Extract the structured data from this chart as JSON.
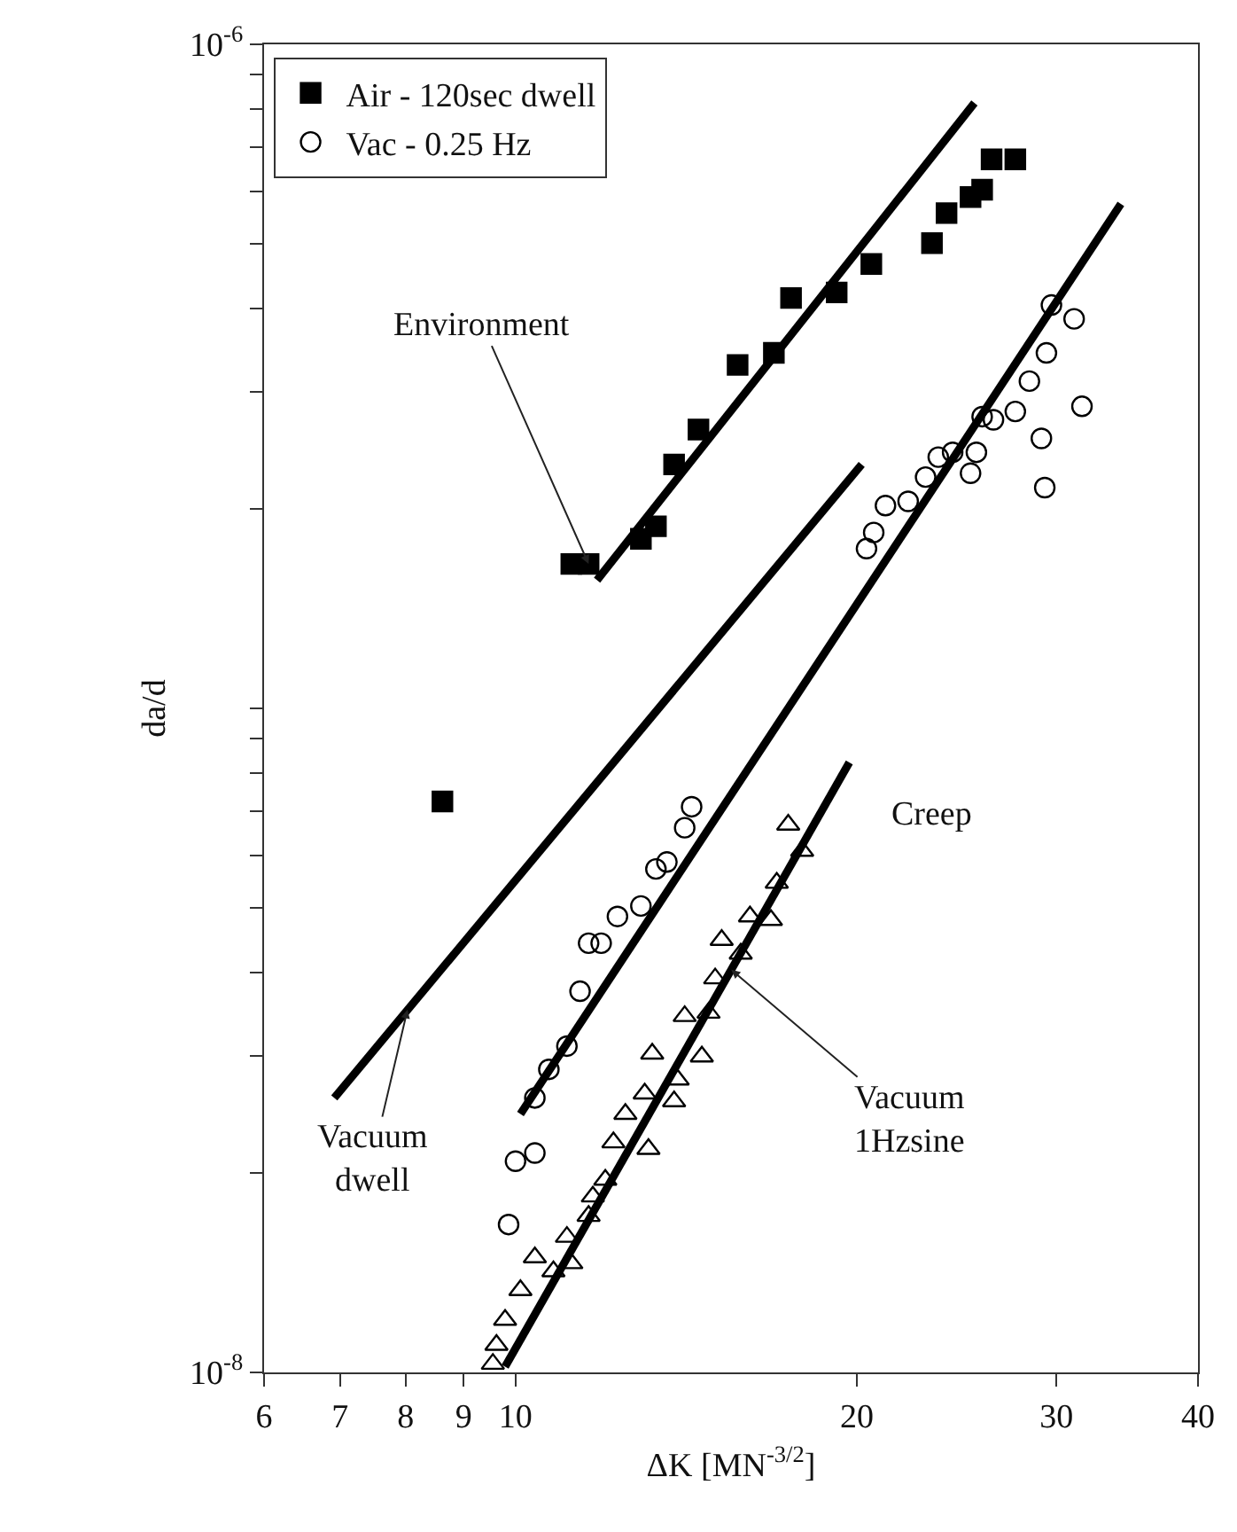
{
  "chart_data": {
    "type": "scatter",
    "xlabel": "ΔK [MN$^{-3/2}$]",
    "ylabel": "da/d",
    "log": "xy",
    "legend": "top left",
    "xlim": [
      6,
      40
    ],
    "xticks": [
      6,
      7,
      8,
      9,
      10,
      20,
      30,
      40
    ],
    "ylim": [
      1e-08,
      1e-06
    ],
    "yticks": [
      {
        "value": 1e-08,
        "label": "10$^{-8}$"
      },
      {
        "value": 2e-08,
        "label": null
      },
      {
        "value": 3e-08,
        "label": null
      },
      {
        "value": 4e-08,
        "label": null
      },
      {
        "value": 5e-08,
        "label": null
      },
      {
        "value": 6e-08,
        "label": null
      },
      {
        "value": 7e-08,
        "label": null
      },
      {
        "value": 8e-08,
        "label": null
      },
      {
        "value": 9e-08,
        "label": null
      },
      {
        "value": 1e-07,
        "label": null
      },
      {
        "value": 2e-07,
        "label": null
      },
      {
        "value": 3e-07,
        "label": null
      },
      {
        "value": 4e-07,
        "label": null
      },
      {
        "value": 5e-07,
        "label": null
      },
      {
        "value": 6e-07,
        "label": null
      },
      {
        "value": 7e-07,
        "label": null
      },
      {
        "value": 8e-07,
        "label": null
      },
      {
        "value": 9e-07,
        "label": null
      },
      {
        "value": 1e-06,
        "label": "10$^{-6}$"
      }
    ],
    "series": [
      {
        "name": "Air - 120sec dwell",
        "color": "#000000",
        "marker": "square",
        "x": [
          27.6,
          26.3,
          25.8,
          25.2,
          24.0,
          23.3,
          20.6,
          19.2,
          17.5,
          16.9,
          15.7,
          14.5,
          13.8,
          13.3,
          12.9,
          11.6,
          11.2,
          8.62
        ],
        "values": [
          6.71e-07,
          6.71e-07,
          6.04e-07,
          5.89e-07,
          5.57e-07,
          5.02e-07,
          4.67e-07,
          4.23e-07,
          4.15e-07,
          3.43e-07,
          3.29e-07,
          2.63e-07,
          2.33e-07,
          1.88e-07,
          1.8e-07,
          1.65e-07,
          1.65e-07,
          7.24e-08
        ]
      },
      {
        "name": "Vac - 0.25 Hz",
        "color": "#000000",
        "marker": "circle",
        "x": [
          29.7,
          31.1,
          29.4,
          31.6,
          29.1,
          29.3,
          28.4,
          27.6,
          26.4,
          25.8,
          25.5,
          25.2,
          24.3,
          23.6,
          23.0,
          22.2,
          21.2,
          20.7,
          20.4,
          14.3,
          14.1,
          13.6,
          13.3,
          12.9,
          12.3,
          11.9,
          11.6,
          11.4,
          11.1,
          10.7,
          10.4,
          10.4,
          10.0,
          9.86
        ],
        "values": [
          4.05e-07,
          3.86e-07,
          3.43e-07,
          2.85e-07,
          2.55e-07,
          2.15e-07,
          3.11e-07,
          2.8e-07,
          2.72e-07,
          2.75e-07,
          2.43e-07,
          2.26e-07,
          2.43e-07,
          2.39e-07,
          2.23e-07,
          2.05e-07,
          2.02e-07,
          1.84e-07,
          1.74e-07,
          7.11e-08,
          6.61e-08,
          5.87e-08,
          5.73e-08,
          5.04e-08,
          4.86e-08,
          4.43e-08,
          4.43e-08,
          3.75e-08,
          3.1e-08,
          2.86e-08,
          2.59e-08,
          2.14e-08,
          2.08e-08,
          1.67e-08
        ]
      },
      {
        "color": "#000000",
        "marker": "triangle",
        "x": [
          17.4,
          17.9,
          17.0,
          16.8,
          16.1,
          15.8,
          15.2,
          15.0,
          14.8,
          14.1,
          14.6,
          13.9,
          13.8,
          13.2,
          13.0,
          13.1,
          12.5,
          12.2,
          12.0,
          11.7,
          11.6,
          11.1,
          11.2,
          10.8,
          10.4,
          10.1,
          9.79,
          9.62,
          9.55
        ],
        "values": [
          6.68e-08,
          6.1e-08,
          5.46e-08,
          4.8e-08,
          4.86e-08,
          4.27e-08,
          4.48e-08,
          3.92e-08,
          3.48e-08,
          3.44e-08,
          2.99e-08,
          2.76e-08,
          2.56e-08,
          3.02e-08,
          2.63e-08,
          2.17e-08,
          2.45e-08,
          2.22e-08,
          1.95e-08,
          1.84e-08,
          1.72e-08,
          1.6e-08,
          1.46e-08,
          1.42e-08,
          1.49e-08,
          1.33e-08,
          1.2e-08,
          1.1e-08,
          1.03e-08
        ]
      },
      {
        "type": "line",
        "color": "#000000",
        "marker": "none",
        "x": [
          11.8,
          25.4
        ],
        "values": [
          1.56e-07,
          8.16e-07
        ]
      },
      {
        "type": "line",
        "color": "#000000",
        "marker": "none",
        "x": [
          6.92,
          20.2
        ],
        "values": [
          2.59e-08,
          2.33e-07
        ]
      },
      {
        "type": "line",
        "color": "#000000",
        "marker": "none",
        "x": [
          10.1,
          34.2
        ],
        "values": [
          2.45e-08,
          5.75e-07
        ]
      },
      {
        "type": "line",
        "color": "#000000",
        "marker": "none",
        "x": [
          9.79,
          19.7
        ],
        "values": [
          1.02e-08,
          8.29e-08
        ]
      }
    ],
    "annotations": [
      {
        "text": "Environment",
        "x": 11.6,
        "y": 1.65e-07
      },
      {
        "text": "Vacuum\ndwell",
        "x": 8.03,
        "y": 3.52e-08
      },
      {
        "text": "Vacuum\n1Hzsine",
        "x": 15.5,
        "y": 4.04e-08
      },
      "Creep"
    ]
  }
}
